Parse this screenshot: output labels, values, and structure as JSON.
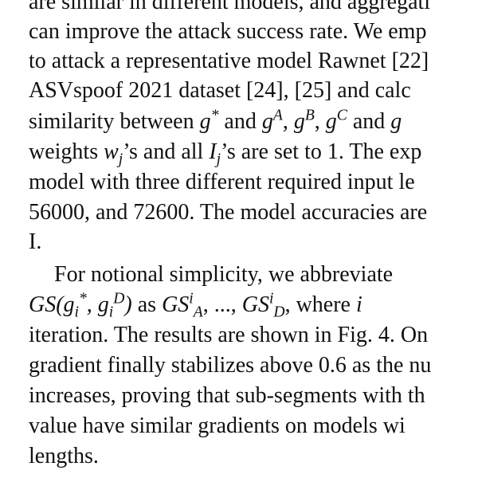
{
  "paragraph1": {
    "lines": [
      "are similar in different models, and aggregati",
      "can improve the attack success rate. We emp",
      "to attack a representative model Rawnet [22]",
      "ASVspoof 2021 dataset [24], [25] and calc",
      "similarity between ",
      " and ",
      ", ",
      ", ",
      " and ",
      "weights ",
      "’s and all ",
      "’s are set to 1. The exp",
      "model with three different required input le",
      "56000, and 72600. The model accuracies are",
      "I."
    ],
    "math": {
      "gstar": "g",
      "gstar_sup": "*",
      "gA": "g",
      "gA_sup": "A",
      "gB": "g",
      "gB_sup": "B",
      "gC": "g",
      "gC_sup": "C",
      "g_end": "g",
      "w": "w",
      "w_sub": "j",
      "I": "I",
      "I_sub": "j"
    }
  },
  "paragraph2": {
    "line1": "For notional simplicity, we abbreviate",
    "line2_parts": {
      "gs": "GS(g",
      "gs_sub": "i",
      "gs_sup": "*",
      "mid": ", g",
      "d_sub": "i",
      "d_sup": "D",
      "close": ")",
      "as": " as ",
      "gsa": "GS",
      "gsa_sup": "i",
      "gsa_sub": "A",
      "dots": ", ..., ",
      "gsd": "GS",
      "gsd_sup": "i",
      "gsd_sub": "D",
      "where": ", where ",
      "i": "i"
    },
    "lines": [
      "iteration. The results are shown in Fig. 4. On",
      "gradient finally stabilizes above 0.6 as the nu",
      "increases, proving that sub-segments with th",
      "value have similar gradients on models wi",
      "lengths."
    ]
  }
}
